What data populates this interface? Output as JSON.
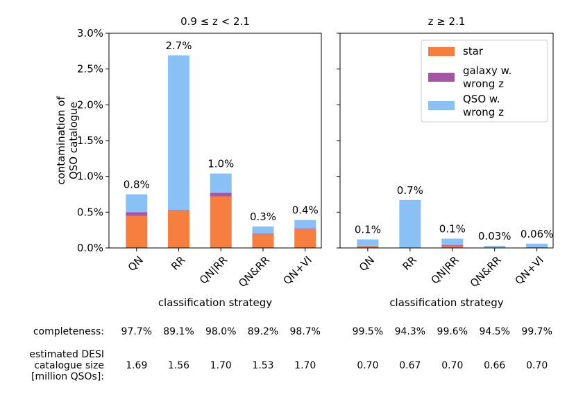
{
  "chart_data": [
    {
      "type": "bar",
      "stacked": true,
      "title": "0.9 ≤ z < 2.1",
      "ylabel": [
        "contamination of",
        "QSO catalogue"
      ],
      "xlabel": "classification strategy",
      "categories": [
        "QN",
        "RR",
        "QN|RR",
        "QN&RR",
        "QN+VI"
      ],
      "series": [
        {
          "name": "star",
          "color": "#f67e3e",
          "values": [
            0.45,
            0.52,
            0.72,
            0.19,
            0.26
          ]
        },
        {
          "name": "galaxy w. wrong z",
          "color": "#a655a6",
          "values": [
            0.05,
            0.01,
            0.05,
            0.01,
            0.01
          ]
        },
        {
          "name": "QSO w. wrong z",
          "color": "#89c0f6",
          "values": [
            0.25,
            2.16,
            0.27,
            0.1,
            0.12
          ]
        }
      ],
      "value_labels": [
        "0.8%",
        "2.7%",
        "1.0%",
        "0.3%",
        "0.4%"
      ],
      "ylim": [
        0,
        3
      ],
      "yticks": [
        {
          "value": 0,
          "label": "0.0%"
        },
        {
          "value": 0.5,
          "label": "0.5%"
        },
        {
          "value": 1,
          "label": "1.0%"
        },
        {
          "value": 1.5,
          "label": "1.5%"
        },
        {
          "value": 2,
          "label": "2.0%"
        },
        {
          "value": 2.5,
          "label": "2.5%"
        },
        {
          "value": 3,
          "label": "3.0%"
        }
      ]
    },
    {
      "type": "bar",
      "stacked": true,
      "title": "z ≥ 2.1",
      "xlabel": "classification strategy",
      "categories": [
        "QN",
        "RR",
        "QN|RR",
        "QN&RR",
        "QN+VI"
      ],
      "series": [
        {
          "name": "star",
          "color": "#f67e3e",
          "values": [
            0.03,
            0.0,
            0.03,
            0.005,
            0.01
          ]
        },
        {
          "name": "galaxy w. wrong z",
          "color": "#a655a6",
          "values": [
            0.0,
            0.0,
            0.01,
            0.0,
            0.0
          ]
        },
        {
          "name": "QSO w. wrong z",
          "color": "#89c0f6",
          "values": [
            0.09,
            0.67,
            0.09,
            0.025,
            0.05
          ]
        }
      ],
      "value_labels": [
        "0.1%",
        "0.7%",
        "0.1%",
        "0.03%",
        "0.06%"
      ],
      "ylim": [
        0,
        3
      ],
      "yticks": [
        0,
        0.5,
        1,
        1.5,
        2,
        2.5,
        3
      ],
      "legend": "upper right"
    }
  ],
  "table": {
    "rows": [
      {
        "label": [
          "completeness:"
        ],
        "values": [
          "97.7%",
          "89.1%",
          "98.0%",
          "89.2%",
          "98.7%",
          "99.5%",
          "94.3%",
          "99.6%",
          "94.5%",
          "99.7%"
        ]
      },
      {
        "label": [
          "estimated DESI",
          "catalogue size",
          "[million QSOs]:"
        ],
        "values": [
          "1.69",
          "1.56",
          "1.70",
          "1.53",
          "1.70",
          "0.70",
          "0.67",
          "0.70",
          "0.66",
          "0.70"
        ]
      }
    ]
  }
}
